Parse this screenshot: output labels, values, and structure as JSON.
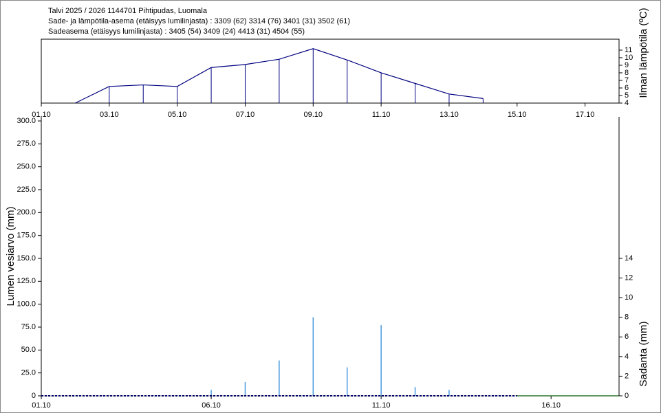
{
  "chart_data": [
    {
      "type": "line",
      "title": "Talvi 2025 / 2026 1144701 Pihtipudas, Luomala",
      "subtitle": [
        "Sade- ja lämpötila-asema (etäisyys lumilinjasta) :  3309 (62) 3314 (76) 3401 (31) 3502 (61)",
        "Sadeasema (etäisyys lumilinjasta) :  3405 (54) 3409 (24) 4413 (31) 4504 (55)"
      ],
      "y2label": "Ilman lämpötila (ºC)",
      "xlim": [
        1,
        18
      ],
      "xticks": [
        {
          "value": 1,
          "label": "01.10"
        },
        {
          "value": 3,
          "label": "03.10"
        },
        {
          "value": 5,
          "label": "05.10"
        },
        {
          "value": 7,
          "label": "07.10"
        },
        {
          "value": 9,
          "label": "09.10"
        },
        {
          "value": 11,
          "label": "11.10"
        },
        {
          "value": 13,
          "label": "13.10"
        },
        {
          "value": 15,
          "label": "15.10"
        },
        {
          "value": 17,
          "label": "17.10"
        }
      ],
      "y2lim": [
        4,
        12.45
      ],
      "y2ticks": [
        4,
        5,
        6,
        7,
        8,
        9,
        10,
        11
      ],
      "series": [
        {
          "axis": "y2",
          "color": "#000080",
          "x": [
            2,
            3,
            4,
            5,
            6,
            7,
            8,
            9,
            10,
            11,
            12,
            13,
            14
          ],
          "values": [
            4.0,
            6.2,
            6.4,
            6.2,
            8.7,
            9.1,
            9.8,
            11.2,
            9.7,
            8.0,
            6.6,
            5.2,
            4.6
          ]
        }
      ]
    },
    {
      "type": "bar",
      "ylabel": "Lumen vesiarvo (mm)",
      "y2label": "Sadanta (mm)",
      "xlim": [
        1,
        18
      ],
      "xticks": [
        {
          "value": 1,
          "label": "01.10"
        },
        {
          "value": 6,
          "label": "06.10"
        },
        {
          "value": 11,
          "label": "11.10"
        },
        {
          "value": 16,
          "label": "16.10"
        }
      ],
      "ylim": [
        0,
        300
      ],
      "yticks": [
        0,
        {
          "value": 25,
          "label": "25.0"
        },
        {
          "value": 50,
          "label": "50.0"
        },
        {
          "value": 75,
          "label": "75.0"
        },
        {
          "value": 100,
          "label": "100.0"
        },
        {
          "value": 125,
          "label": "125.0"
        },
        {
          "value": 150,
          "label": "150.0"
        },
        {
          "value": 175,
          "label": "175.0"
        },
        {
          "value": 200,
          "label": "200.0"
        },
        {
          "value": 225,
          "label": "225.0"
        },
        {
          "value": 250,
          "label": "250.0"
        },
        {
          "value": 275,
          "label": "275.0"
        },
        {
          "value": 300,
          "label": "300.0"
        }
      ],
      "y2lim": [
        0,
        28
      ],
      "y2ticks": [
        0,
        2,
        4,
        6,
        8,
        10,
        12,
        14
      ],
      "series": [
        {
          "type": "bar",
          "axis": "y2",
          "color": "#4a9be0",
          "x": [
            6,
            7,
            8,
            9,
            10,
            11,
            12,
            13
          ],
          "values": [
            0.6,
            1.4,
            3.6,
            8.0,
            2.9,
            7.2,
            0.9,
            0.6
          ]
        },
        {
          "type": "line",
          "color": "#000080",
          "dash": true,
          "x": [
            1,
            15
          ],
          "values": [
            0,
            0
          ]
        },
        {
          "type": "line",
          "color": "#008000",
          "dash": false,
          "x": [
            15,
            18
          ],
          "values": [
            0,
            0
          ]
        }
      ]
    }
  ]
}
